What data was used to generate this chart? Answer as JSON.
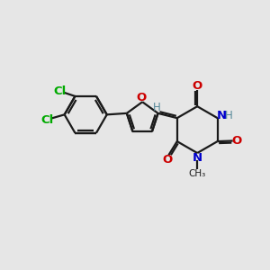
{
  "bg_color": "#e6e6e6",
  "bond_color": "#1a1a1a",
  "oxygen_color": "#cc0000",
  "nitrogen_color": "#0000cc",
  "chlorine_color": "#00aa00",
  "h_color": "#558899",
  "line_width": 1.6,
  "figsize": [
    3.0,
    3.0
  ],
  "dpi": 100,
  "xlim": [
    0,
    10
  ],
  "ylim": [
    0,
    10
  ]
}
